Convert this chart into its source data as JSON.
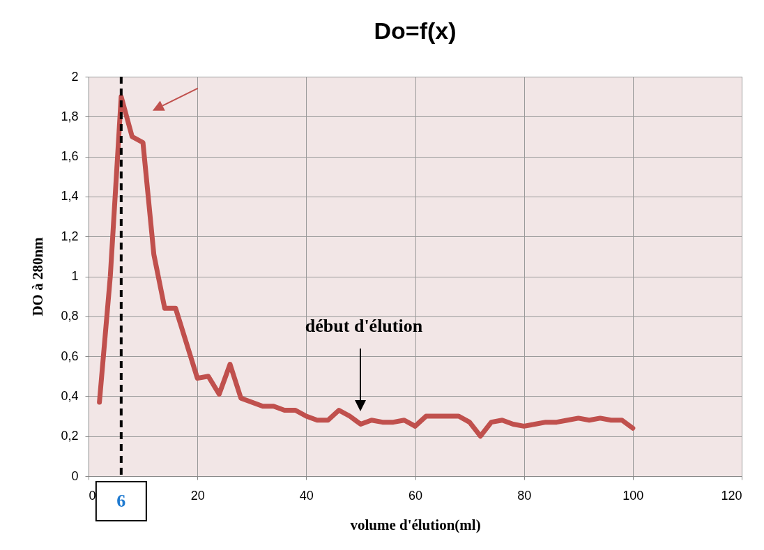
{
  "chart_data": {
    "type": "line",
    "title": "Do=f(x)",
    "xlabel": "volume d'élution(ml)",
    "ylabel": "DO à 280nm",
    "x": [
      2,
      4,
      6,
      8,
      10,
      12,
      14,
      16,
      20,
      22,
      24,
      26,
      28,
      32,
      34,
      36,
      38,
      40,
      42,
      44,
      46,
      48,
      50,
      52,
      54,
      56,
      58,
      60,
      62,
      64,
      66,
      68,
      70,
      72,
      74,
      76,
      78,
      80,
      82,
      84,
      86,
      88,
      90,
      92,
      94,
      96,
      98,
      100
    ],
    "series": [
      {
        "color": "#c0504d",
        "values": [
          0.37,
          1.0,
          1.9,
          1.7,
          1.67,
          1.11,
          0.84,
          0.84,
          0.49,
          0.5,
          0.41,
          0.56,
          0.39,
          0.35,
          0.35,
          0.33,
          0.33,
          0.3,
          0.28,
          0.28,
          0.33,
          0.3,
          0.26,
          0.28,
          0.27,
          0.27,
          0.28,
          0.25,
          0.3,
          0.3,
          0.3,
          0.3,
          0.27,
          0.2,
          0.27,
          0.28,
          0.26,
          0.25,
          0.26,
          0.27,
          0.27,
          0.28,
          0.29,
          0.28,
          0.29,
          0.28,
          0.28,
          0.24
        ]
      }
    ],
    "xlim": [
      0,
      120
    ],
    "xticks": [
      0,
      20,
      40,
      60,
      80,
      100,
      120
    ],
    "ylim": [
      0,
      2
    ],
    "yticks": [
      0,
      {
        "value": 0.2,
        "label": "0,2"
      },
      {
        "value": 0.4,
        "label": "0,4"
      },
      {
        "value": 0.6,
        "label": "0,6"
      },
      {
        "value": 0.8,
        "label": "0,8"
      },
      1,
      {
        "value": 1.2,
        "label": "1,2"
      },
      {
        "value": 1.4,
        "label": "1,4"
      },
      {
        "value": 1.6,
        "label": "1,6"
      },
      {
        "value": 1.8,
        "label": "1,8"
      },
      2
    ],
    "grid": true,
    "ref_lines": [
      {
        "axis": "x",
        "value": 6,
        "label": "6",
        "color": "#000000",
        "line_style": "dashed"
      }
    ],
    "annotations": [
      "début d'élution"
    ]
  }
}
